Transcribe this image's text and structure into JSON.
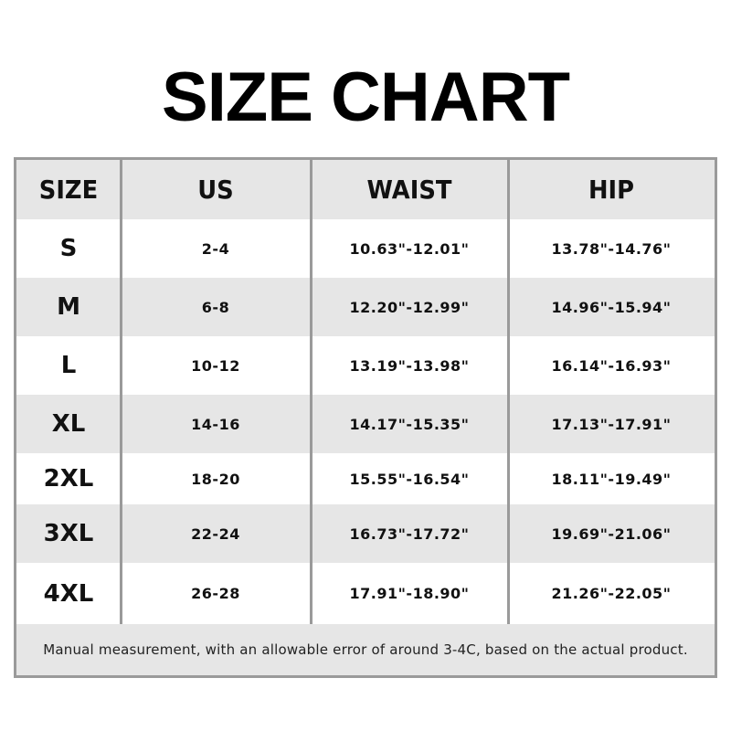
{
  "title": "SIZE CHART",
  "table": {
    "headers": [
      "SIZE",
      "US",
      "WAIST",
      "HIP"
    ],
    "rows": [
      [
        "S",
        "2-4",
        "10.63\"-12.01\"",
        "13.78\"-14.76\""
      ],
      [
        "M",
        "6-8",
        "12.20\"-12.99\"",
        "14.96\"-15.94\""
      ],
      [
        "L",
        "10-12",
        "13.19\"-13.98\"",
        "16.14\"-16.93\""
      ],
      [
        "XL",
        "14-16",
        "14.17\"-15.35\"",
        "17.13\"-17.91\""
      ],
      [
        "2XL",
        "18-20",
        "15.55\"-16.54\"",
        "18.11\"-19.49\""
      ],
      [
        "3XL",
        "22-24",
        "16.73\"-17.72\"",
        "19.69\"-21.06\""
      ],
      [
        "4XL",
        "26-28",
        "17.91\"-18.90\"",
        "21.26\"-22.05\""
      ]
    ],
    "footnote": "Manual measurement, with an allowable error of around 3-4C, based on the actual product."
  },
  "colors": {
    "border": "#9a9a9a",
    "stripe": "#e6e6e6"
  }
}
